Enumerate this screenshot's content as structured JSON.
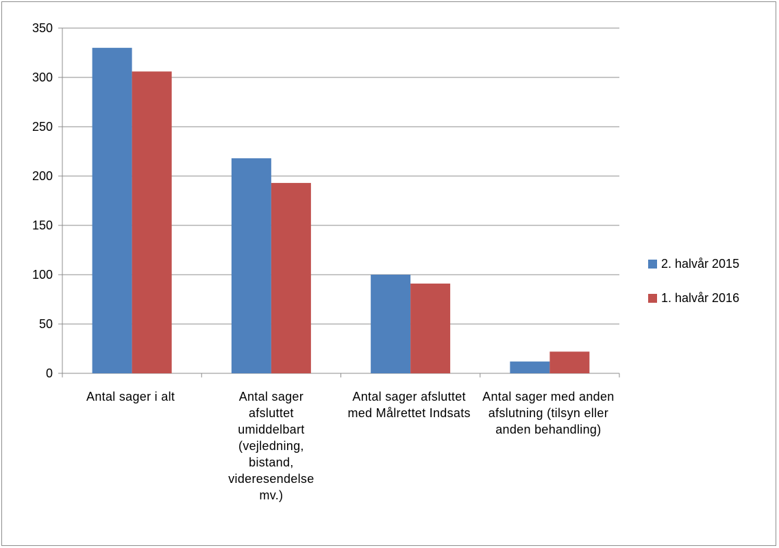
{
  "chart_data": {
    "type": "bar",
    "categories": [
      "Antal sager i alt",
      "Antal sager afsluttet umiddelbart (vejledning, bistand, videresendelse mv.)",
      "Antal sager afsluttet med Målrettet Indsats",
      "Antal sager med anden afslutning (tilsyn eller anden behandling)"
    ],
    "series": [
      {
        "name": "2. halvår 2015",
        "color": "#4F81BD",
        "values": [
          330,
          218,
          100,
          12
        ]
      },
      {
        "name": "1. halvår 2016",
        "color": "#C0504D",
        "values": [
          306,
          193,
          91,
          22
        ]
      }
    ],
    "ylim": [
      0,
      350
    ],
    "yticks": [
      0,
      50,
      100,
      150,
      200,
      250,
      300,
      350
    ],
    "grid": true,
    "legend": "right",
    "title": "",
    "xlabel": "",
    "ylabel": ""
  }
}
